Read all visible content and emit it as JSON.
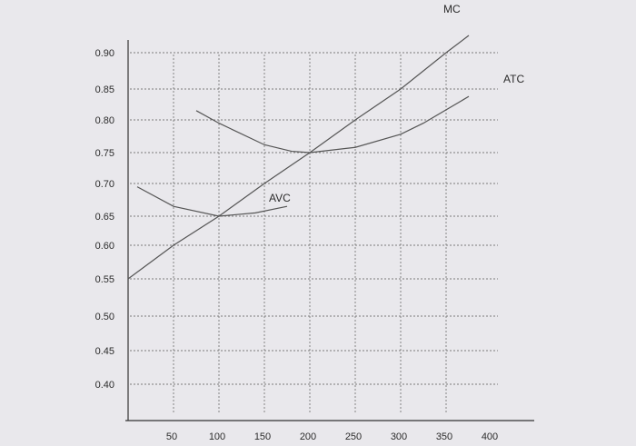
{
  "chart_data": {
    "type": "line",
    "title": "",
    "xlabel": "",
    "ylabel": "",
    "x_ticks": [
      50,
      100,
      150,
      200,
      250,
      300,
      350,
      400
    ],
    "y_ticks": [
      "0.90",
      "0.85",
      "0.80",
      "0.75",
      "0.70",
      "0.65",
      "0.60",
      "0.55",
      "0.50",
      "0.45",
      "0.40"
    ],
    "grid": true,
    "series": [
      {
        "name": "MC",
        "x": [
          0,
          50,
          100,
          150,
          200,
          250,
          300,
          350,
          375
        ],
        "y": [
          0.55,
          0.6,
          0.65,
          0.7,
          0.75,
          0.8,
          0.85,
          0.9,
          0.925
        ]
      },
      {
        "name": "ATC",
        "x": [
          75,
          100,
          150,
          180,
          200,
          250,
          300,
          325,
          375
        ],
        "y": [
          0.815,
          0.795,
          0.762,
          0.752,
          0.75,
          0.758,
          0.778,
          0.795,
          0.838
        ]
      },
      {
        "name": "AVC",
        "x": [
          10,
          50,
          100,
          140,
          175
        ],
        "y": [
          0.695,
          0.665,
          0.65,
          0.655,
          0.665
        ]
      }
    ]
  }
}
